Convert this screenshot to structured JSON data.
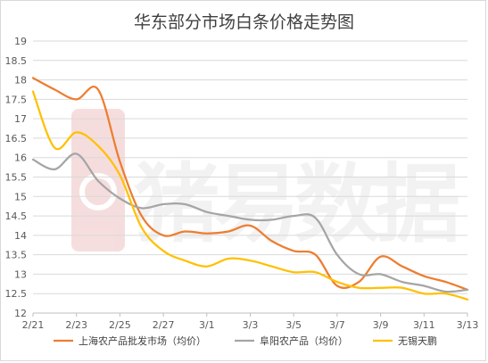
{
  "chart_data": {
    "type": "line",
    "title": "华东部分市场白条价格走势图",
    "xlabel": "",
    "ylabel": "",
    "ylim": [
      12,
      19
    ],
    "y_ticks": [
      "12",
      "12.5",
      "13",
      "13.5",
      "14",
      "14.5",
      "15",
      "15.5",
      "16",
      "16.5",
      "17",
      "17.5",
      "18",
      "18.5",
      "19"
    ],
    "x_tick_labels": [
      "2/21",
      "2/23",
      "2/25",
      "2/27",
      "3/1",
      "3/3",
      "3/5",
      "3/7",
      "3/9",
      "3/11",
      "3/13"
    ],
    "x_dates": [
      "2/21",
      "2/22",
      "2/23",
      "2/24",
      "2/25",
      "2/26",
      "2/27",
      "2/28",
      "3/1",
      "3/2",
      "3/3",
      "3/4",
      "3/5",
      "3/6",
      "3/7",
      "3/8",
      "3/9",
      "3/10",
      "3/11",
      "3/12",
      "3/13"
    ],
    "grid": "horizontal",
    "legend_position": "bottom",
    "watermark": "猪易数据",
    "series": [
      {
        "name": "上海农产品批发市场（均价）",
        "color": "#ED7D31",
        "values": [
          18.05,
          17.75,
          17.5,
          17.75,
          15.9,
          14.5,
          14.0,
          14.1,
          14.05,
          14.1,
          14.25,
          13.85,
          13.6,
          13.5,
          12.7,
          12.8,
          13.45,
          13.2,
          12.95,
          12.8,
          12.6
        ]
      },
      {
        "name": "阜阳农产品（均价）",
        "color": "#A5A5A5",
        "values": [
          15.95,
          15.7,
          16.1,
          15.4,
          14.95,
          14.7,
          14.8,
          14.8,
          14.6,
          14.5,
          14.4,
          14.4,
          14.5,
          14.45,
          13.5,
          13.0,
          13.0,
          12.8,
          12.7,
          12.55,
          12.6
        ]
      },
      {
        "name": "无锡天鹏",
        "color": "#FFC000",
        "values": [
          17.7,
          16.25,
          16.65,
          16.3,
          15.55,
          14.2,
          13.6,
          13.35,
          13.2,
          13.4,
          13.35,
          13.2,
          13.05,
          13.05,
          12.8,
          12.65,
          12.65,
          12.65,
          12.5,
          12.5,
          12.35
        ]
      }
    ]
  }
}
